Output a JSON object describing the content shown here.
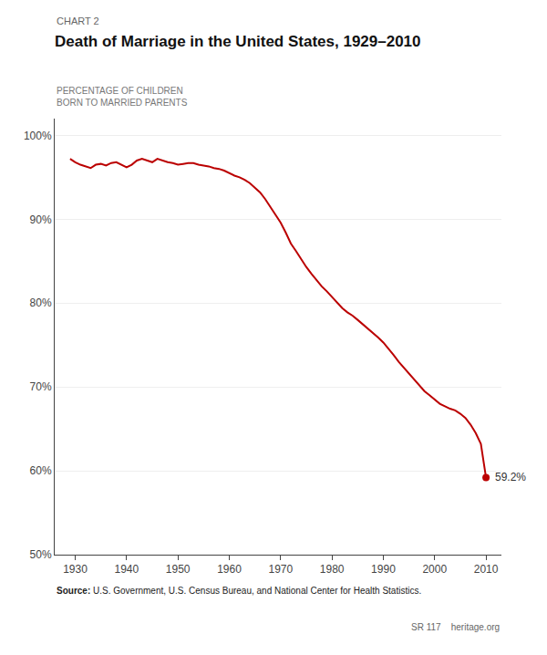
{
  "chart_data": {
    "type": "line",
    "subtitle": "CHART 2",
    "title": "Death of Marriage in the United States, 1929–2010",
    "ylabel": [
      "PERCENTAGE OF CHILDREN",
      "BORN TO MARRIED PARENTS"
    ],
    "source": "Source: U.S. Government, U.S. Census Bureau, and National Center for Health Statistics.",
    "footer": "SR 117    heritage.org",
    "color": "#bb0000",
    "grid": "y",
    "x": [
      1929,
      1930,
      1931,
      1932,
      1933,
      1934,
      1935,
      1936,
      1937,
      1938,
      1939,
      1940,
      1941,
      1942,
      1943,
      1944,
      1945,
      1946,
      1947,
      1948,
      1949,
      1950,
      1951,
      1952,
      1953,
      1954,
      1955,
      1956,
      1957,
      1958,
      1959,
      1960,
      1961,
      1962,
      1963,
      1964,
      1965,
      1966,
      1967,
      1968,
      1969,
      1970,
      1971,
      1972,
      1973,
      1974,
      1975,
      1976,
      1977,
      1978,
      1979,
      1980,
      1981,
      1982,
      1983,
      1984,
      1985,
      1986,
      1987,
      1988,
      1989,
      1990,
      1991,
      1992,
      1993,
      1994,
      1995,
      1996,
      1997,
      1998,
      1999,
      2000,
      2001,
      2002,
      2003,
      2004,
      2005,
      2006,
      2007,
      2008,
      2009,
      2010
    ],
    "values": [
      97.2,
      96.8,
      96.5,
      96.3,
      96.1,
      96.5,
      96.6,
      96.4,
      96.7,
      96.8,
      96.5,
      96.2,
      96.5,
      97.0,
      97.2,
      97.0,
      96.8,
      97.2,
      97.0,
      96.8,
      96.7,
      96.5,
      96.6,
      96.7,
      96.7,
      96.5,
      96.4,
      96.3,
      96.1,
      96.0,
      95.8,
      95.5,
      95.2,
      95.0,
      94.7,
      94.3,
      93.8,
      93.2,
      92.4,
      91.5,
      90.5,
      89.6,
      88.4,
      87.1,
      86.2,
      85.2,
      84.3,
      83.5,
      82.7,
      82.0,
      81.4,
      80.7,
      80.0,
      79.4,
      78.9,
      78.5,
      78.0,
      77.5,
      77.0,
      76.5,
      75.9,
      75.3,
      74.6,
      73.8,
      73.0,
      72.3,
      71.5,
      70.8,
      70.1,
      69.5,
      69.0,
      68.5,
      68.0,
      67.7,
      67.4,
      67.2,
      66.8,
      66.3,
      65.5,
      64.5,
      63.2,
      59.2
    ],
    "annotations": [
      {
        "x": 2010,
        "y": 59.2,
        "text": "59.2%"
      }
    ],
    "xlim": [
      1926,
      2013
    ],
    "xticks": [
      1930,
      1940,
      1950,
      1960,
      1970,
      1980,
      1990,
      2000,
      2010
    ],
    "ylim": [
      50,
      102
    ],
    "yticks": [
      {
        "value": 50,
        "label": "50%"
      },
      {
        "value": 60,
        "label": "60%"
      },
      {
        "value": 70,
        "label": "70%"
      },
      {
        "value": 80,
        "label": "80%"
      },
      {
        "value": 90,
        "label": "90%"
      },
      {
        "value": 100,
        "label": "100%"
      }
    ]
  }
}
